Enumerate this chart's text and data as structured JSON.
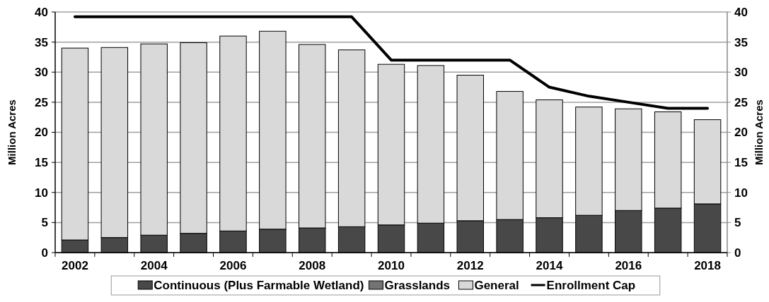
{
  "chart_data": {
    "type": "bar",
    "stacked": true,
    "ylabel": "Million Acres",
    "y2label": "Million Acres",
    "categories": [
      "2002",
      null,
      "2004",
      null,
      "2006",
      null,
      "2008",
      null,
      "2010",
      null,
      "2012",
      null,
      "2014",
      null,
      "2016",
      null,
      "2018"
    ],
    "series": [
      {
        "name": "Continuous (Plus Farmable Wetland)",
        "color": "#484848",
        "values": [
          2.1,
          2.5,
          2.9,
          3.2,
          3.6,
          3.9,
          4.1,
          4.3,
          4.6,
          4.9,
          5.3,
          5.5,
          5.8,
          6.2,
          7.0,
          7.4,
          8.1
        ]
      },
      {
        "name": "Grasslands",
        "color": "#737373",
        "values": [
          0,
          0,
          0,
          0,
          0,
          0,
          0,
          0,
          0,
          0,
          0,
          0,
          0,
          0,
          0,
          0,
          0
        ]
      },
      {
        "name": "General",
        "color": "#d9d9d9",
        "values": [
          31.9,
          31.6,
          31.8,
          31.7,
          32.4,
          32.9,
          30.5,
          29.4,
          26.7,
          26.2,
          24.2,
          21.3,
          19.6,
          18.0,
          16.9,
          16.0,
          14.0
        ]
      },
      {
        "name": "Enrollment Cap",
        "type": "line",
        "color": "#000000",
        "values": [
          39.2,
          39.2,
          39.2,
          39.2,
          39.2,
          39.2,
          39.2,
          39.2,
          32,
          32,
          32,
          32,
          27.5,
          26,
          25,
          24,
          24
        ]
      }
    ],
    "ylim": [
      0,
      40
    ],
    "yticks": [
      0,
      5,
      10,
      15,
      20,
      25,
      30,
      35,
      40
    ],
    "y2lim": [
      0,
      40
    ],
    "y2ticks": [
      0,
      5,
      10,
      15,
      20,
      25,
      30,
      35,
      40
    ],
    "grid": "y",
    "legend": "bottom"
  }
}
